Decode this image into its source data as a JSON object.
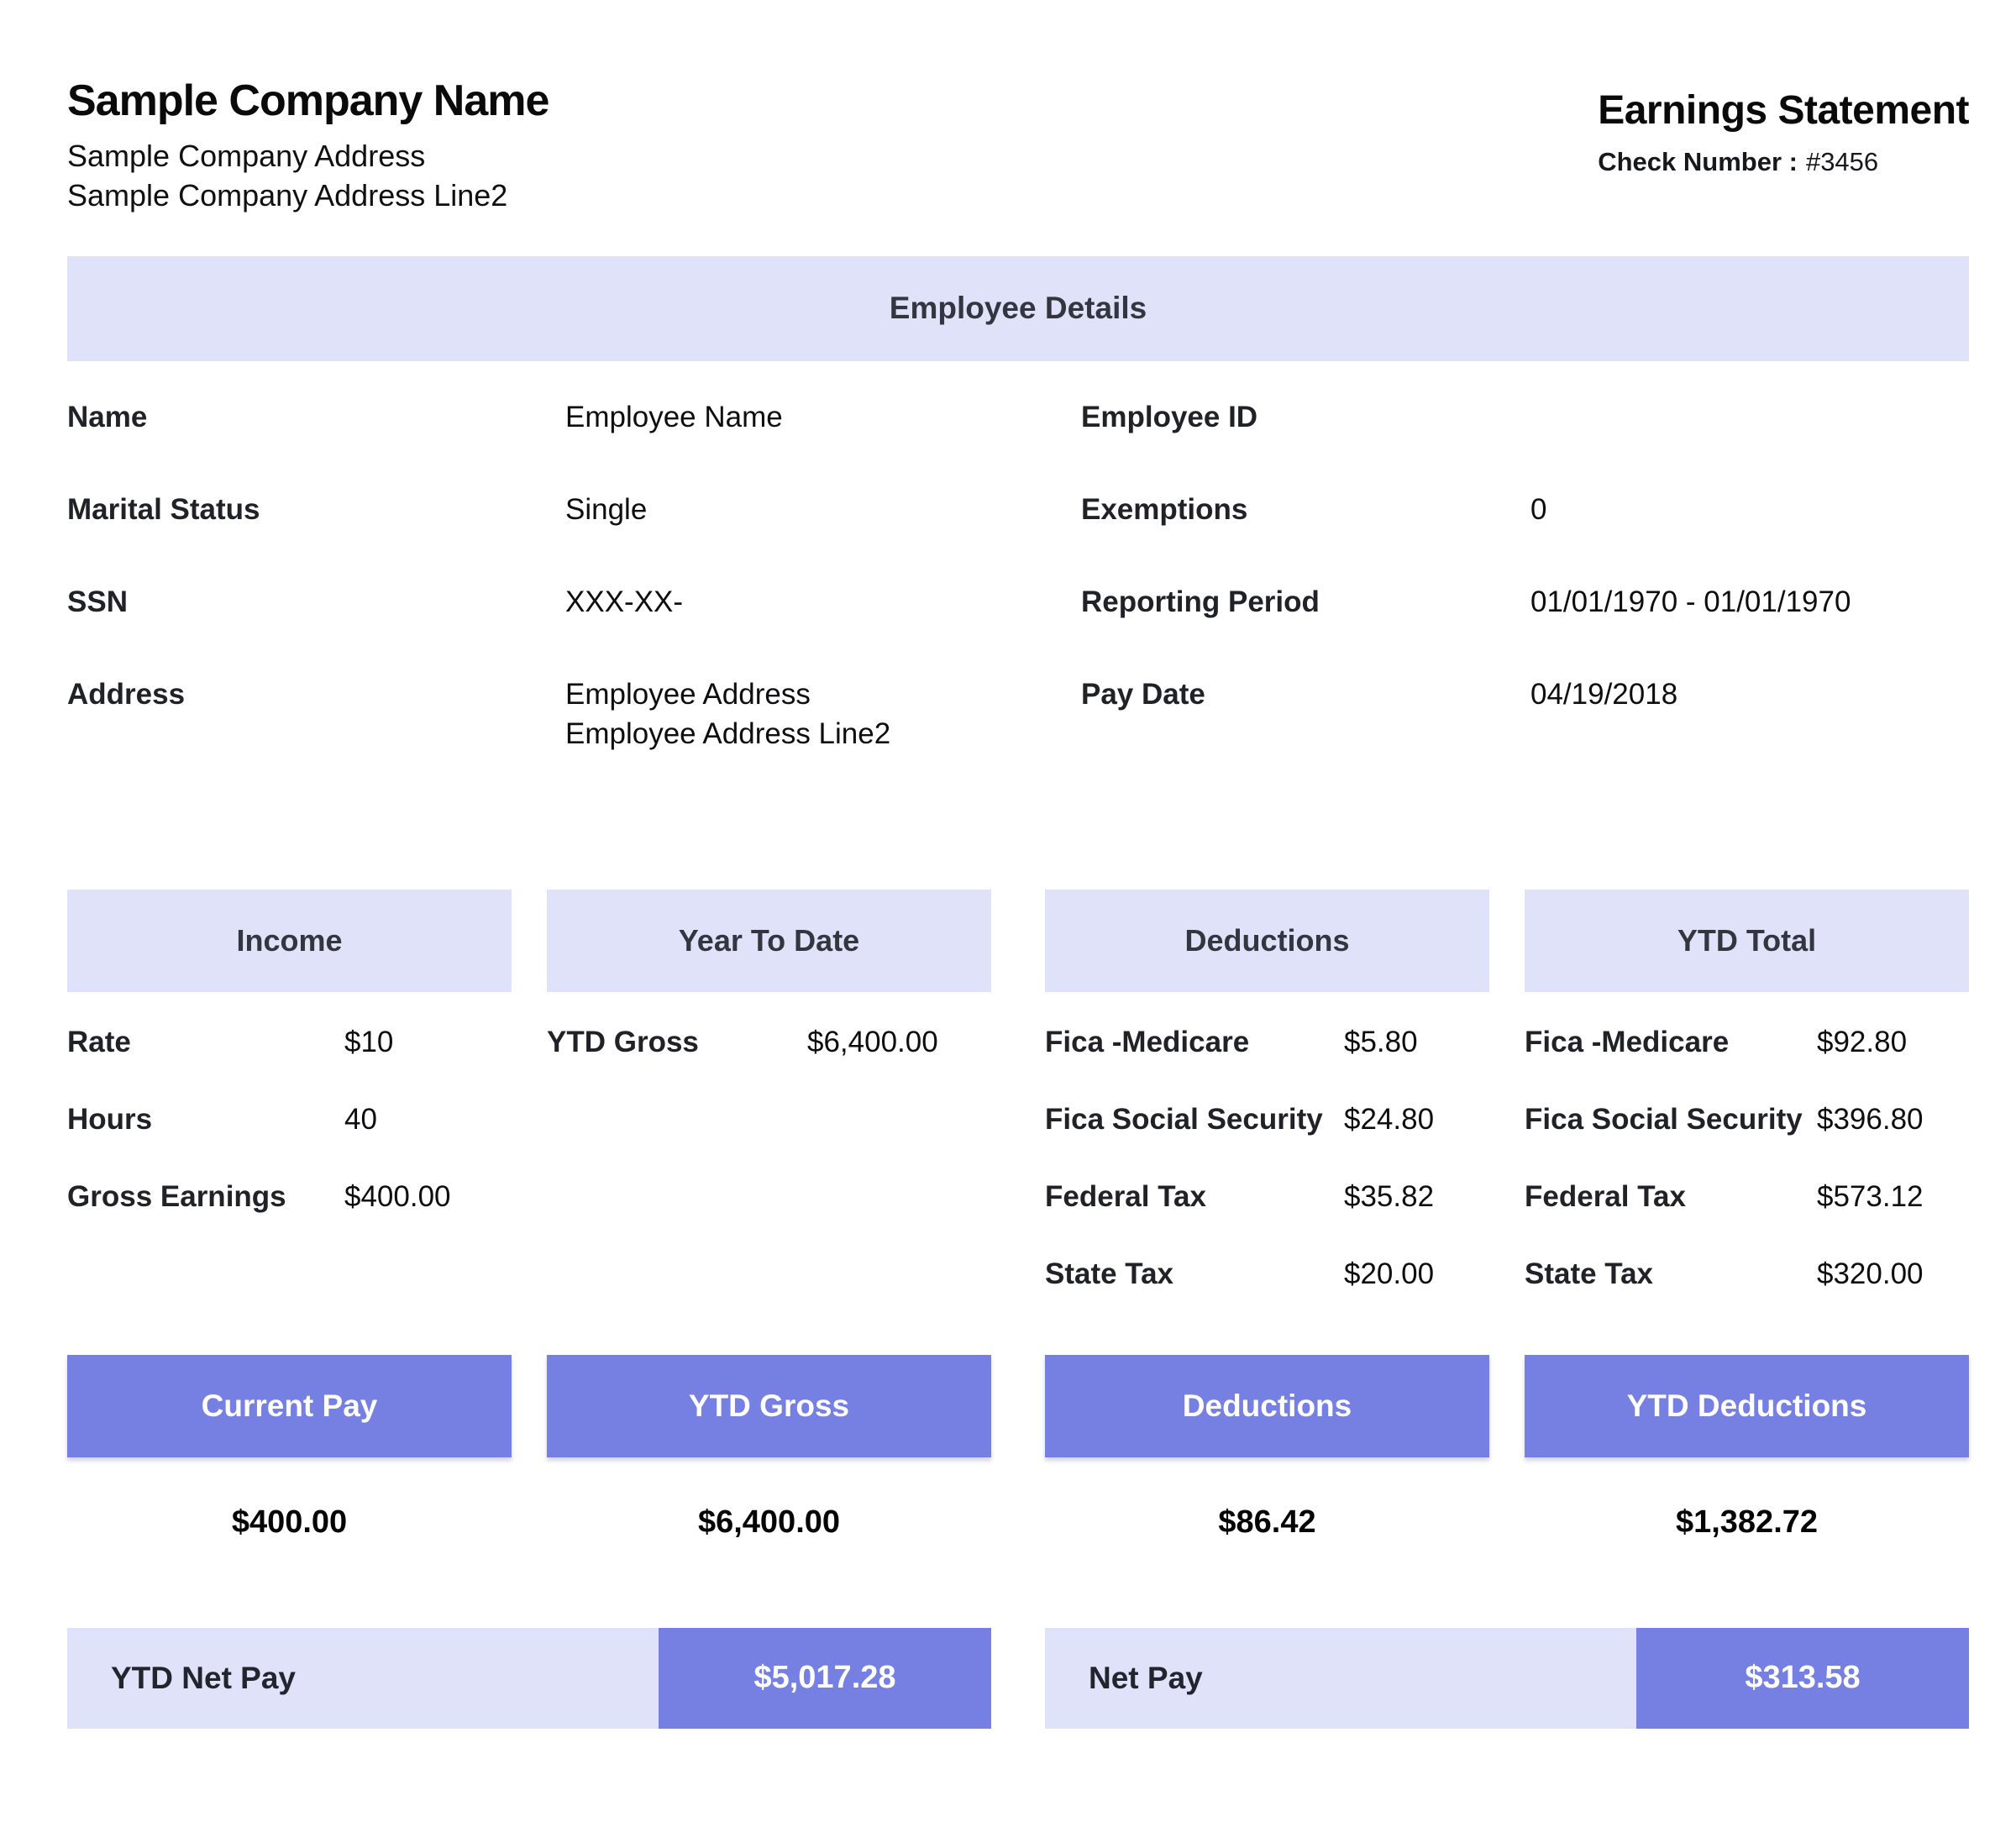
{
  "header": {
    "company_name": "Sample Company Name",
    "company_address": "Sample Company Address",
    "company_address2": "Sample Company Address Line2",
    "statement_title": "Earnings Statement",
    "check_number_label": "Check Number :",
    "check_number_value": "#3456"
  },
  "employee_details": {
    "title": "Employee Details",
    "left": [
      {
        "label": "Name",
        "value": "Employee Name"
      },
      {
        "label": "Marital Status",
        "value": "Single"
      },
      {
        "label": "SSN",
        "value": "XXX-XX-"
      },
      {
        "label": "Address",
        "value": "Employee Address",
        "value2": "Employee Address Line2"
      }
    ],
    "right": [
      {
        "label": "Employee ID",
        "value": ""
      },
      {
        "label": "Exemptions",
        "value": "0"
      },
      {
        "label": "Reporting Period",
        "value": "01/01/1970 - 01/01/1970"
      },
      {
        "label": "Pay Date",
        "value": "04/19/2018"
      }
    ]
  },
  "sections": [
    {
      "title": "Income",
      "rows": [
        [
          "Rate",
          "$10"
        ],
        [
          "Hours",
          "40"
        ],
        [
          "Gross Earnings",
          "$400.00"
        ]
      ],
      "footer_title": "Current Pay",
      "footer_value": "$400.00"
    },
    {
      "title": "Year To Date",
      "rows": [
        [
          "YTD Gross",
          "$6,400.00"
        ]
      ],
      "footer_title": "YTD Gross",
      "footer_value": "$6,400.00"
    },
    {
      "title": "Deductions",
      "rows": [
        [
          "Fica -Medicare",
          "$5.80"
        ],
        [
          "Fica Social Security",
          "$24.80"
        ],
        [
          "Federal Tax",
          "$35.82"
        ],
        [
          "State Tax",
          "$20.00"
        ]
      ],
      "footer_title": "Deductions",
      "footer_value": "$86.42"
    },
    {
      "title": "YTD Total",
      "rows": [
        [
          "Fica -Medicare",
          "$92.80"
        ],
        [
          "Fica Social Security",
          "$396.80"
        ],
        [
          "Federal Tax",
          "$573.12"
        ],
        [
          "State Tax",
          "$320.00"
        ]
      ],
      "footer_title": "YTD Deductions",
      "footer_value": "$1,382.72"
    }
  ],
  "summary": [
    {
      "label": "YTD Net Pay",
      "value": "$5,017.28"
    },
    {
      "label": "Net Pay",
      "value": "$313.58"
    }
  ],
  "colors": {
    "lavender": "#dfe2f9",
    "purple": "#7680e2",
    "header_text": "#34363f"
  }
}
